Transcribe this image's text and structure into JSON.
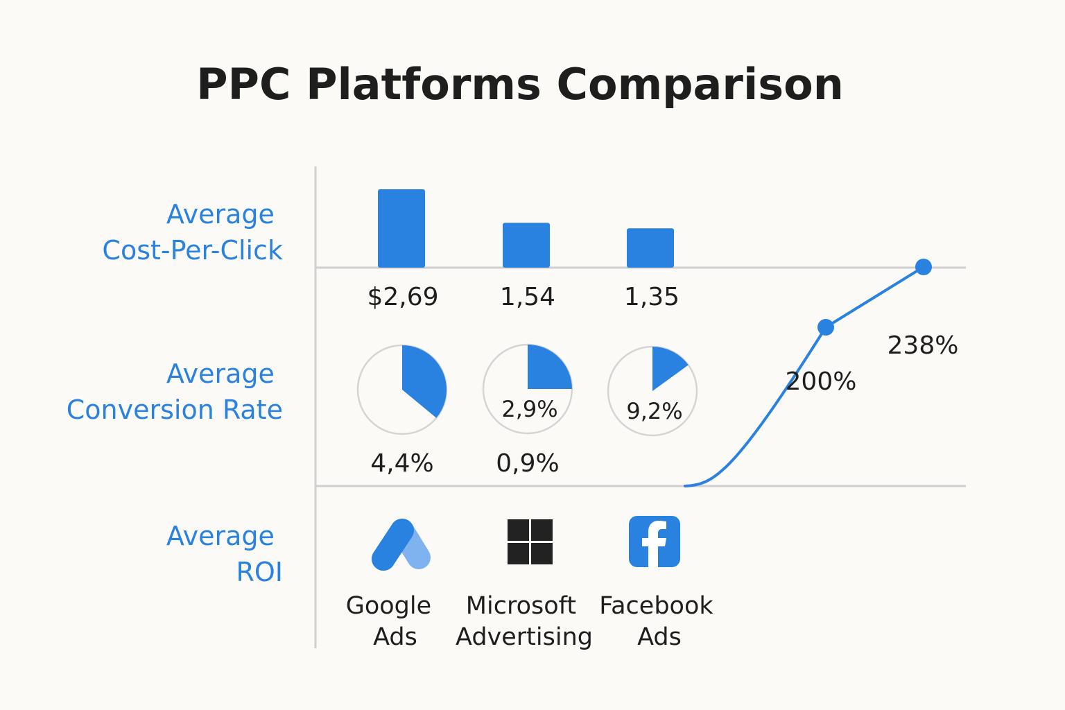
{
  "title": "PPC Platforms Comparison",
  "colors": {
    "accent": "#2a82e0",
    "text": "#1e1e1e",
    "axis": "#cfcfcf",
    "ring": "#d4d4d4",
    "background": "#fbfaf6"
  },
  "row_labels": {
    "cpc": [
      "Average",
      "Cost-Per-Click"
    ],
    "conversion": [
      "Average",
      "Conversion Rate"
    ],
    "roi": [
      "Average",
      "ROI"
    ]
  },
  "platforms": [
    {
      "name_lines": [
        "Google",
        "Ads"
      ],
      "icon": "google-ads-icon"
    },
    {
      "name_lines": [
        "Microsoft",
        "Advertising"
      ],
      "icon": "microsoft-logo-icon"
    },
    {
      "name_lines": [
        "Facebook",
        "Ads"
      ],
      "icon": "facebook-icon"
    }
  ],
  "chart_data": [
    {
      "type": "bar",
      "name": "Average Cost-Per-Click",
      "categories": [
        "Google Ads",
        "Microsoft Advertising",
        "Facebook Ads"
      ],
      "values": [
        2.69,
        1.54,
        1.35
      ],
      "value_labels": [
        "$2,69",
        "1,54",
        "1,35"
      ]
    },
    {
      "type": "pie",
      "name": "Average Conversion Rate",
      "categories": [
        "Google Ads",
        "Microsoft Advertising",
        "Facebook Ads"
      ],
      "filled_fraction": [
        0.36,
        0.25,
        0.15
      ],
      "labels_inside": [
        "",
        "2,9%",
        "9,2%"
      ],
      "labels_below": [
        "4,4%",
        "0,9%",
        ""
      ]
    },
    {
      "type": "line",
      "name": "Average ROI",
      "points": [
        {
          "label": "200%",
          "value": 200
        },
        {
          "label": "238%",
          "value": 238
        }
      ]
    }
  ]
}
